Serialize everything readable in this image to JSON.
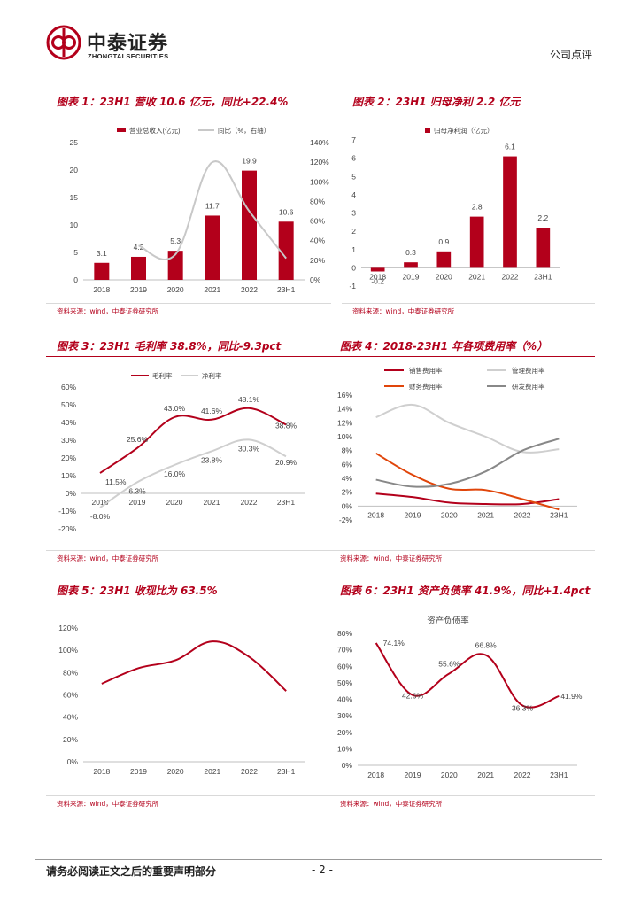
{
  "header": {
    "company_cn": "中泰证券",
    "company_en": "ZHONGTAI SECURITIES",
    "report_type": "公司点评",
    "brand_color": "#b3001b"
  },
  "footer": {
    "disclaimer": "请务必阅读正文之后的重要声明部分",
    "page_number": "- 2 -"
  },
  "charts": [
    {
      "title": "图表 1：23H1 营收 10.6 亿元，同比+22.4%",
      "source": "资料来源：wind，中泰证券研究所",
      "chart_data": {
        "type": "bar",
        "categories": [
          "2018",
          "2019",
          "2020",
          "2021",
          "2022",
          "23H1"
        ],
        "series": [
          {
            "name": "营业总收入(亿元)",
            "kind": "bar",
            "values": [
              3.1,
              4.2,
              5.3,
              11.7,
              19.9,
              10.6
            ],
            "labels": [
              "3.1",
              "4.2",
              "5.3",
              "11.7",
              "19.9",
              "10.6"
            ]
          },
          {
            "name": "同比（%，右轴）",
            "kind": "line",
            "axis": "right",
            "values": [
              null,
              35,
              26,
              120,
              70,
              22
            ]
          }
        ],
        "ylim": [
          0,
          25
        ],
        "yticks": [
          "0",
          "5",
          "10",
          "15",
          "20",
          "25"
        ],
        "y2lim": [
          0,
          140
        ],
        "y2ticks": [
          "0%",
          "20%",
          "40%",
          "60%",
          "80%",
          "100%",
          "120%",
          "140%"
        ]
      }
    },
    {
      "title": "图表 2：23H1 归母净利 2.2 亿元",
      "source": "资料来源：wind，中泰证券研究所",
      "chart_data": {
        "type": "bar",
        "categories": [
          "2018",
          "2019",
          "2020",
          "2021",
          "2022",
          "23H1"
        ],
        "series": [
          {
            "name": "归母净利润（亿元）",
            "kind": "bar",
            "values": [
              -0.2,
              0.3,
              0.9,
              2.8,
              6.1,
              2.2
            ],
            "labels": [
              "-0.2",
              "0.3",
              "0.9",
              "2.8",
              "6.1",
              "2.2"
            ]
          }
        ],
        "ylim": [
          -1,
          7
        ],
        "yticks": [
          "-1",
          "0",
          "1",
          "2",
          "3",
          "4",
          "5",
          "6",
          "7"
        ]
      }
    },
    {
      "title": "图表 3：23H1 毛利率 38.8%，同比-9.3pct",
      "source": "资料来源：wind，中泰证券研究所",
      "chart_data": {
        "type": "line",
        "categories": [
          "2018",
          "2019",
          "2020",
          "2021",
          "2022",
          "23H1"
        ],
        "series": [
          {
            "name": "毛利率",
            "values": [
              11.5,
              25.6,
              43.0,
              41.6,
              48.1,
              38.8
            ],
            "labels": [
              "11.5%",
              "25.6%",
              "43.0%",
              "41.6%",
              "48.1%",
              "38.8%"
            ]
          },
          {
            "name": "净利率",
            "values": [
              -8.0,
              6.3,
              16.0,
              23.8,
              30.3,
              20.9
            ],
            "labels": [
              "-8.0%",
              "6.3%",
              "16.0%",
              "23.8%",
              "30.3%",
              "20.9%"
            ]
          }
        ],
        "ylim": [
          -20,
          60
        ],
        "yticks": [
          "-20%",
          "-10%",
          "0%",
          "10%",
          "20%",
          "30%",
          "40%",
          "50%",
          "60%"
        ]
      }
    },
    {
      "title": "图表 4：2018-23H1 年各项费用率（%）",
      "source": "资料来源：wind，中泰证券研究所",
      "chart_data": {
        "type": "line",
        "categories": [
          "2018",
          "2019",
          "2020",
          "2021",
          "2022",
          "23H1"
        ],
        "series": [
          {
            "name": "销售费用率",
            "values": [
              1.8,
              1.3,
              0.5,
              0.3,
              0.3,
              1.0
            ]
          },
          {
            "name": "管理费用率",
            "values": [
              12.8,
              14.6,
              12.0,
              10.0,
              7.8,
              8.2
            ]
          },
          {
            "name": "财务费用率",
            "values": [
              7.6,
              4.5,
              2.5,
              2.3,
              1.0,
              -0.5
            ]
          },
          {
            "name": "研发费用率",
            "values": [
              3.8,
              2.8,
              3.2,
              5.0,
              8.0,
              9.7
            ]
          }
        ],
        "ylim": [
          -2,
          16
        ],
        "yticks": [
          "-2%",
          "0%",
          "2%",
          "4%",
          "6%",
          "8%",
          "10%",
          "12%",
          "14%",
          "16%"
        ]
      }
    },
    {
      "title": "图表 5：23H1 收现比为 63.5%",
      "source": "资料来源：wind，中泰证券研究所",
      "chart_data": {
        "type": "line",
        "categories": [
          "2018",
          "2019",
          "2020",
          "2021",
          "2022",
          "23H1"
        ],
        "series": [
          {
            "name": "收现比",
            "values": [
              70,
              84,
              91,
              108,
              94,
              63.5
            ]
          }
        ],
        "ylim": [
          0,
          120
        ],
        "yticks": [
          "0%",
          "20%",
          "40%",
          "60%",
          "80%",
          "100%",
          "120%"
        ]
      }
    },
    {
      "title": "图表 6：23H1 资产负债率 41.9%，同比+1.4pct",
      "source": "资料来源：wind，中泰证券研究所",
      "chart_data": {
        "type": "line",
        "title": "资产负债率",
        "categories": [
          "2018",
          "2019",
          "2020",
          "2021",
          "2022",
          "23H1"
        ],
        "series": [
          {
            "name": "资产负债率",
            "values": [
              74.1,
              42.6,
              55.6,
              66.8,
              36.3,
              41.9
            ],
            "labels": [
              "74.1%",
              "42.6%",
              "55.6%",
              "66.8%",
              "36.3%",
              "41.9%"
            ]
          }
        ],
        "ylim": [
          0,
          80
        ],
        "yticks": [
          "0%",
          "10%",
          "20%",
          "30%",
          "40%",
          "50%",
          "60%",
          "70%",
          "80%"
        ]
      }
    }
  ]
}
